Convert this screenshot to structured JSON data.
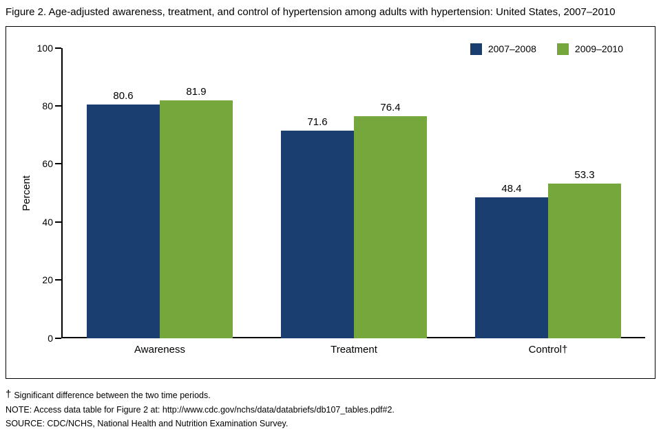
{
  "title": "Figure 2. Age-adjusted awareness, treatment, and control of hypertension among adults with hypertension: United States, 2007–2010",
  "chart_data": {
    "type": "bar",
    "categories": [
      "Awareness",
      "Treatment",
      "Control†"
    ],
    "series": [
      {
        "name": "2007–2008",
        "color": "#1a3e6f",
        "values": [
          80.6,
          71.6,
          48.4
        ]
      },
      {
        "name": "2009–2010",
        "color": "#76a73c",
        "values": [
          81.9,
          76.4,
          53.3
        ]
      }
    ],
    "title": "Age-adjusted awareness, treatment, and control of hypertension among adults with hypertension: United States, 2007–2010",
    "xlabel": "",
    "ylabel": "Percent",
    "ylim": [
      0,
      100
    ],
    "yticks": [
      0,
      20,
      40,
      60,
      80,
      100
    ],
    "grid": false,
    "legend_position": "top-right"
  },
  "footnotes": {
    "dagger_symbol": "†",
    "dagger_text": "Significant difference between the two time periods.",
    "note": "NOTE: Access data table for Figure 2 at: http://www.cdc.gov/nchs/data/databriefs/db107_tables.pdf#2.",
    "source": "SOURCE: CDC/NCHS, National Health and Nutrition Examination Survey."
  }
}
